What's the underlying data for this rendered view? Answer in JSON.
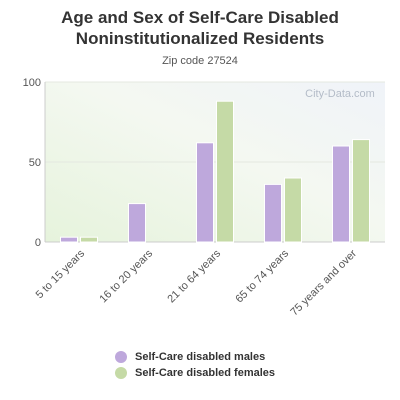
{
  "title_line1": "Age and Sex of Self-Care Disabled",
  "title_line2": "Noninstitutionalized Residents",
  "subtitle": "Zip code 27524",
  "watermark": "City-Data.com",
  "colors": {
    "males": "#bea8dc",
    "females": "#c5daa6",
    "grid": "#e4e8e0",
    "axis": "#cccccc"
  },
  "chart_data": {
    "type": "bar",
    "title": "Age and Sex of Self-Care Disabled Noninstitutionalized Residents",
    "subtitle": "Zip code 27524",
    "categories": [
      "5 to 15 years",
      "16 to 20 years",
      "21 to 64 years",
      "65 to 74 years",
      "75 years and over"
    ],
    "series": [
      {
        "name": "Self-Care disabled males",
        "values": [
          3,
          24,
          62,
          36,
          60
        ]
      },
      {
        "name": "Self-Care disabled females",
        "values": [
          3,
          0,
          88,
          40,
          64
        ]
      }
    ],
    "ylim": [
      0,
      100
    ],
    "yticks": [
      0,
      50,
      100
    ],
    "legend": "bottom",
    "grid": true
  }
}
